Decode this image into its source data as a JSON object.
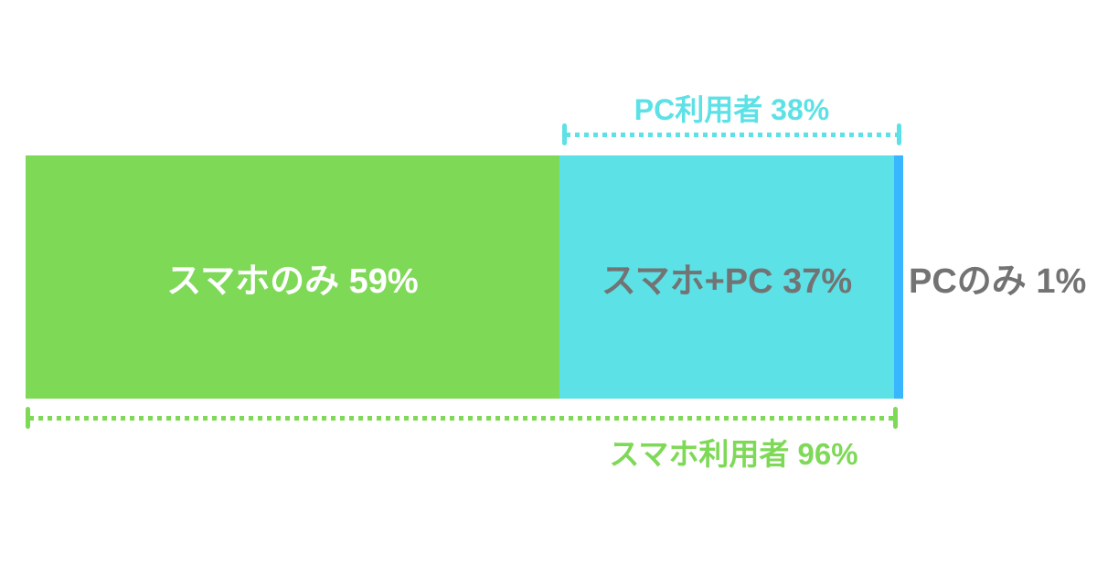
{
  "chart_data": {
    "type": "bar",
    "subtype": "horizontal-stacked-percentage",
    "unit": "%",
    "segments": [
      {
        "name": "smartphone-only",
        "label": "スマホのみ 59%",
        "value": 59,
        "color": "#7ED957",
        "text_color": "#FFFFFF"
      },
      {
        "name": "smartphone-and-pc",
        "label": "スマホ+PC 37%",
        "value": 37,
        "color": "#5CE1E6",
        "text_color": "#737373"
      },
      {
        "name": "pc-only",
        "label": "PCのみ 1%",
        "value": 1,
        "color": "#38B6FF",
        "text_color": "#737373",
        "label_position": "outside-right"
      }
    ],
    "brackets": [
      {
        "name": "pc-users",
        "label": "PC利用者 38%",
        "value": 38,
        "position": "top",
        "color": "#5CE1E6",
        "covers": [
          "smartphone-and-pc",
          "pc-only"
        ]
      },
      {
        "name": "smartphone-users",
        "label": "スマホ利用者 96%",
        "value": 96,
        "position": "bottom",
        "color": "#7ED957",
        "covers": [
          "smartphone-only",
          "smartphone-and-pc"
        ]
      }
    ],
    "layout": {
      "background": "#FFFFFF",
      "grid": false,
      "axes": false,
      "legend": false
    }
  }
}
